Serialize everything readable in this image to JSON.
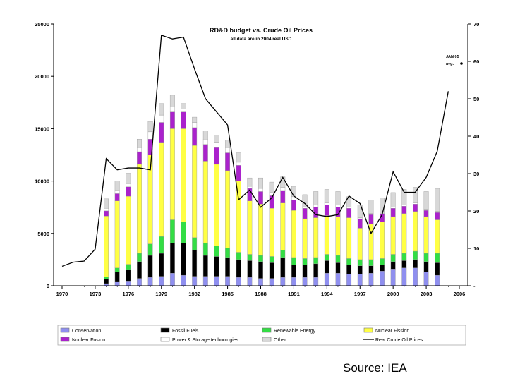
{
  "chart_data": {
    "type": "bar",
    "title": "RD&D budget vs. Crude Oil Prices",
    "subtitle": "all data are in 2004 real USD",
    "stacked": true,
    "years": [
      1970,
      1971,
      1972,
      1973,
      1974,
      1975,
      1976,
      1977,
      1978,
      1979,
      1980,
      1981,
      1982,
      1983,
      1984,
      1985,
      1986,
      1987,
      1988,
      1989,
      1990,
      1991,
      1992,
      1993,
      1994,
      1995,
      1996,
      1997,
      1998,
      1999,
      2000,
      2001,
      2002,
      2003,
      2004,
      2005
    ],
    "bar_years": [
      1974,
      1975,
      1976,
      1977,
      1978,
      1979,
      1980,
      1981,
      1982,
      1983,
      1984,
      1985,
      1986,
      1987,
      1988,
      1989,
      1990,
      1991,
      1992,
      1993,
      1994,
      1995,
      1996,
      1997,
      1998,
      1999,
      2000,
      2001,
      2002,
      2003,
      2004
    ],
    "x_ticks": [
      "1970",
      "1973",
      "1976",
      "1979",
      "1982",
      "1985",
      "1988",
      "1991",
      "1994",
      "1997",
      "2000",
      "2003",
      "2006"
    ],
    "y_left": {
      "ylim": [
        0,
        25000
      ],
      "ticks": [
        "0",
        "5000",
        "10000",
        "15000",
        "20000",
        "25000"
      ]
    },
    "y_right": {
      "ylim": [
        0,
        70
      ],
      "ticks": [
        "-",
        "10",
        "20",
        "30",
        "40",
        "50",
        "60",
        "70"
      ]
    },
    "grid": false,
    "legend_position": "bottom",
    "series": [
      {
        "name": "Conservation",
        "color": "#8f8fef",
        "values": [
          200,
          400,
          450,
          700,
          800,
          900,
          1200,
          1000,
          900,
          900,
          900,
          900,
          800,
          800,
          700,
          700,
          800,
          800,
          800,
          800,
          1200,
          1200,
          1100,
          1100,
          1200,
          1400,
          1600,
          1700,
          1700,
          1300,
          1000
        ]
      },
      {
        "name": "Fossil Fuels",
        "color": "#000000",
        "values": [
          450,
          900,
          1100,
          1600,
          2100,
          2200,
          2900,
          3100,
          2500,
          2000,
          1900,
          1800,
          1700,
          1600,
          1600,
          1500,
          1900,
          1200,
          1200,
          1300,
          1200,
          1000,
          900,
          800,
          700,
          600,
          700,
          700,
          800,
          1000,
          1200
        ]
      },
      {
        "name": "Renewable Energy",
        "color": "#33dd44",
        "values": [
          200,
          400,
          500,
          800,
          1100,
          1600,
          2200,
          2000,
          1200,
          1200,
          1000,
          900,
          700,
          600,
          600,
          600,
          700,
          700,
          600,
          600,
          600,
          700,
          600,
          600,
          600,
          600,
          700,
          700,
          800,
          800,
          900
        ]
      },
      {
        "name": "Nuclear Fission",
        "color": "#ffff44",
        "values": [
          5800,
          6400,
          6500,
          8500,
          8500,
          9000,
          8700,
          8900,
          8800,
          7800,
          7800,
          7400,
          6800,
          5100,
          4900,
          4600,
          4500,
          4500,
          3800,
          3800,
          3700,
          3700,
          3900,
          3000,
          3400,
          3500,
          3600,
          3800,
          3800,
          3500,
          3200
        ]
      },
      {
        "name": "Nuclear Fusion",
        "color": "#aa22cc",
        "values": [
          500,
          700,
          900,
          1200,
          1500,
          1900,
          1600,
          1600,
          1700,
          1600,
          1600,
          1700,
          1500,
          1200,
          1200,
          1200,
          1200,
          1000,
          1000,
          1000,
          1000,
          900,
          900,
          900,
          900,
          800,
          800,
          700,
          700,
          600,
          700
        ]
      },
      {
        "name": "Power & Storage technologies",
        "color": "#ffffff",
        "values": [
          250,
          300,
          300,
          400,
          700,
          700,
          500,
          300,
          500,
          500,
          500,
          500,
          300,
          200,
          300,
          300,
          300,
          300,
          200,
          200,
          200,
          200,
          100,
          100,
          100,
          100,
          100,
          100,
          100,
          100,
          100
        ]
      },
      {
        "name": "Other",
        "color": "#d8d8d8",
        "values": [
          900,
          900,
          1000,
          800,
          1000,
          1100,
          1100,
          500,
          500,
          800,
          700,
          700,
          900,
          800,
          1000,
          1000,
          1000,
          1000,
          1100,
          1300,
          1300,
          1300,
          1000,
          1200,
          1300,
          1400,
          1400,
          1500,
          1500,
          1700,
          2200
        ]
      }
    ],
    "line_series": {
      "name": "Real Crude Oil Prices",
      "color": "#000000",
      "values": [
        5.2,
        6.3,
        6.6,
        9.8,
        34,
        31,
        31.5,
        31.5,
        31,
        67,
        66,
        66.5,
        58,
        50,
        46.5,
        43,
        23,
        25.6,
        21,
        23.5,
        29,
        24,
        22,
        19,
        18.5,
        19,
        24,
        22,
        14,
        19,
        30.5,
        25,
        25,
        29,
        36,
        52
      ]
    },
    "annotation": {
      "line1": "JAN 05",
      "line2": "avg."
    }
  },
  "source_text": "Source: IEA"
}
